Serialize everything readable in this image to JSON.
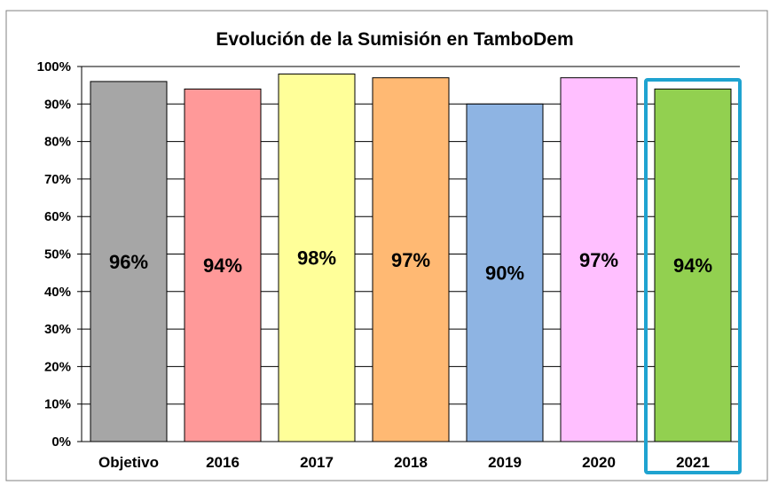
{
  "chart_data": {
    "type": "bar",
    "title": "Evolución de la Sumisión en TamboDem",
    "categories": [
      "Objetivo",
      "2016",
      "2017",
      "2018",
      "2019",
      "2020",
      "2021"
    ],
    "values": [
      96,
      94,
      98,
      97,
      90,
      97,
      94
    ],
    "value_labels": [
      "96%",
      "94%",
      "98%",
      "97%",
      "90%",
      "97%",
      "94%"
    ],
    "bar_colors": [
      "#a6a6a6",
      "#ff9999",
      "#ffff99",
      "#ffb973",
      "#8eb4e3",
      "#ffbfff",
      "#92d050"
    ],
    "highlight_category": "2021",
    "highlight_color": "#1fa3d0",
    "ylim": [
      0,
      100
    ],
    "yticks": [
      0,
      10,
      20,
      30,
      40,
      50,
      60,
      70,
      80,
      90,
      100
    ],
    "ytick_labels": [
      "0%",
      "10%",
      "20%",
      "30%",
      "40%",
      "50%",
      "60%",
      "70%",
      "80%",
      "90%",
      "100%"
    ],
    "grid": true,
    "legend": "none"
  }
}
